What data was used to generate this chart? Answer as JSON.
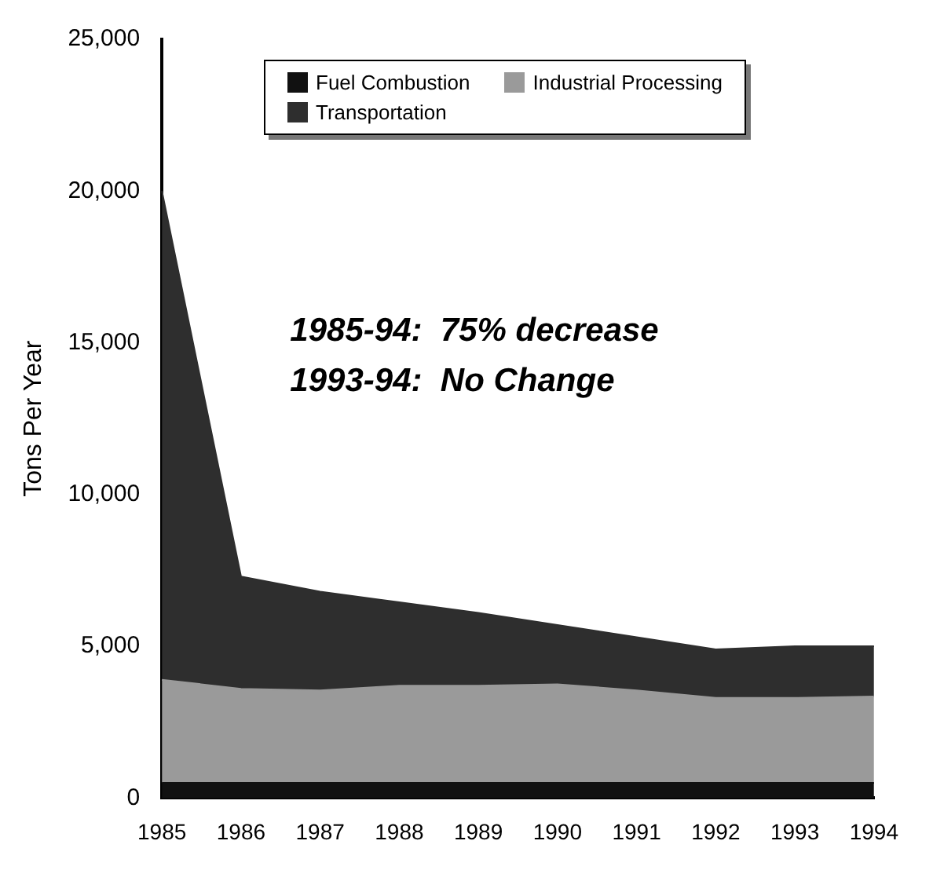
{
  "chart_data": {
    "type": "area",
    "stacked": true,
    "ylabel": "Tons Per Year",
    "categories": [
      "1985",
      "1986",
      "1987",
      "1988",
      "1989",
      "1990",
      "1991",
      "1992",
      "1993",
      "1994"
    ],
    "series": [
      {
        "name": "Fuel Combustion",
        "color": "#111111",
        "values": [
          500,
          500,
          500,
          500,
          500,
          500,
          500,
          500,
          500,
          500
        ]
      },
      {
        "name": "Industrial Processing",
        "color": "#9a9a9a",
        "values": [
          3400,
          3100,
          3050,
          3200,
          3200,
          3250,
          3050,
          2800,
          2800,
          2850
        ]
      },
      {
        "name": "Transportation",
        "color": "#2e2e2e",
        "values": [
          16100,
          3700,
          3250,
          2750,
          2400,
          1950,
          1750,
          1600,
          1700,
          1650
        ]
      }
    ],
    "ylim": [
      0,
      25000
    ],
    "yticks": [
      {
        "value": 0,
        "label": "0"
      },
      {
        "value": 5000,
        "label": "5,000"
      },
      {
        "value": 10000,
        "label": "10,000"
      },
      {
        "value": 15000,
        "label": "15,000"
      },
      {
        "value": 20000,
        "label": "20,000"
      },
      {
        "value": 25000,
        "label": "25,000"
      }
    ],
    "annotations": [
      "1985-94:  75% decrease",
      "1993-94:  No Change"
    ],
    "grid": false,
    "legend": "top",
    "marker": "none"
  }
}
